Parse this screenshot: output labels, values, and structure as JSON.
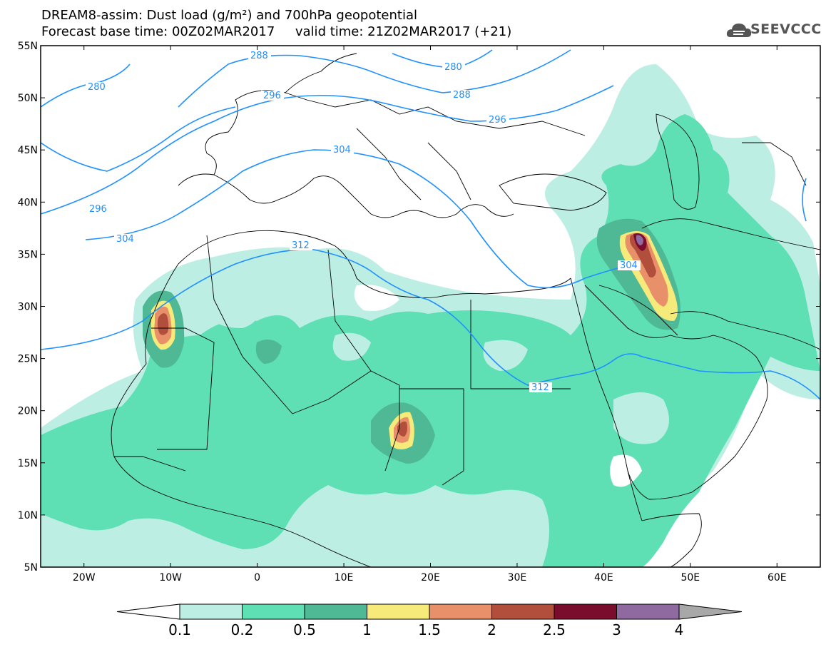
{
  "header": {
    "title_line1": "DREAM8-assim: Dust load (g/m²) and 700hPa geopotential",
    "title_line2": "Forecast base time: 00Z02MAR2017     valid time: 21Z02MAR2017 (+21)",
    "logo_text": "SEEVCCC",
    "logo_icon": "cloud-icon"
  },
  "map": {
    "lat_ticks": [
      "55N",
      "50N",
      "45N",
      "40N",
      "35N",
      "30N",
      "25N",
      "20N",
      "15N",
      "10N",
      "5N"
    ],
    "lon_ticks": [
      "20W",
      "10W",
      "0",
      "10E",
      "20E",
      "30E",
      "40E",
      "50E",
      "60E"
    ],
    "lat_range": [
      5,
      55
    ],
    "lon_range": [
      -25,
      65
    ],
    "contour_color": "#1e90ff",
    "contour_labels": [
      "288",
      "280",
      "280",
      "296",
      "288",
      "296",
      "304",
      "296",
      "304",
      "312",
      "304",
      "312"
    ],
    "dust_colors": [
      "#bdeee3",
      "#5ee0b4",
      "#4fb895",
      "#f5ea7a",
      "#e8906a",
      "#b14e3c",
      "#7a0c2e",
      "#8e6aa0",
      "#a8a8a8"
    ]
  },
  "colorbar": {
    "labels": [
      "0.1",
      "0.2",
      "0.5",
      "1",
      "1.5",
      "2",
      "2.5",
      "3",
      "4"
    ],
    "colors": [
      "#ffffff",
      "#bdeee3",
      "#5ee0b4",
      "#4fb895",
      "#f5ea7a",
      "#e8906a",
      "#b14e3c",
      "#7a0c2e",
      "#8e6aa0",
      "#a8a8a8"
    ]
  }
}
